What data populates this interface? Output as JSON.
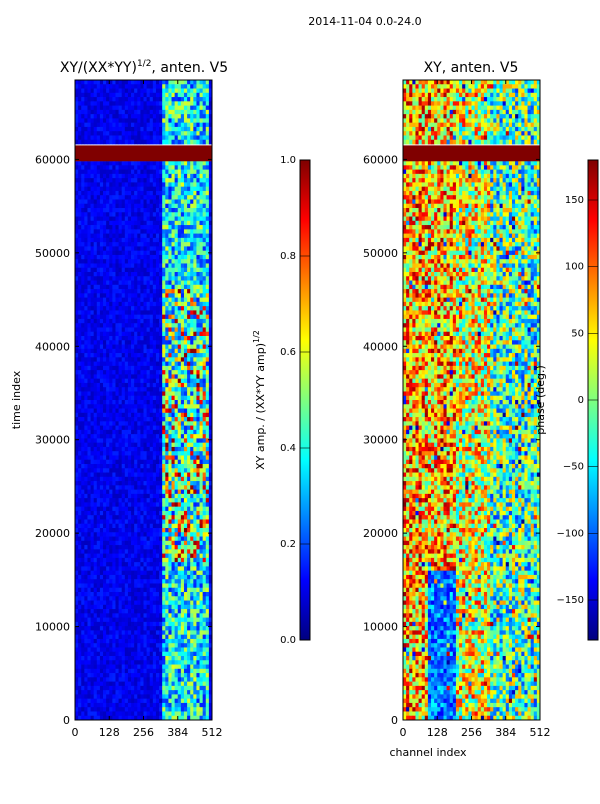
{
  "figure": {
    "suptitle": "2014-11-04 0.0-24.0",
    "shared_xlabel": "channel index"
  },
  "colors": {
    "jet": [
      "#00007f",
      "#0000ff",
      "#007fff",
      "#00ffff",
      "#7fff7f",
      "#ffff00",
      "#ff7f00",
      "#ff0000",
      "#7f0000"
    ],
    "flag_band": "#800000"
  },
  "chart_data": [
    {
      "type": "heatmap",
      "title_text": "XY/(XX*YY)",
      "title_sup": "1/2",
      "title_suffix": ", anten. V5",
      "xlabel": "",
      "ylabel": "time index",
      "xticks": [
        0,
        128,
        256,
        384,
        512
      ],
      "yticks": [
        0,
        10000,
        20000,
        30000,
        40000,
        50000,
        60000
      ],
      "xlim": [
        0,
        512
      ],
      "ylim": [
        0,
        68500
      ],
      "colorbar": {
        "label_text": "XY amp. / (XX*YY amp)",
        "label_sup": "1/2",
        "range": [
          0.0,
          1.0
        ],
        "ticks": [
          "0.0",
          "0.2",
          "0.4",
          "0.6",
          "0.8",
          "1.0"
        ]
      },
      "flagged_band": [
        59800,
        61500
      ],
      "active_channel_range": [
        325,
        500
      ]
    },
    {
      "type": "heatmap",
      "title_text": "XY, anten. V5",
      "xlabel": "channel index",
      "ylabel": "",
      "xticks": [
        0,
        128,
        256,
        384,
        512
      ],
      "yticks": [
        0,
        10000,
        20000,
        30000,
        40000,
        50000,
        60000
      ],
      "xlim": [
        0,
        512
      ],
      "ylim": [
        0,
        68500
      ],
      "colorbar": {
        "label_text": "phase (deg.)",
        "range": [
          -180,
          180
        ],
        "ticks": [
          "−150",
          "−100",
          "−50",
          "0",
          "50",
          "100",
          "150"
        ]
      },
      "flagged_band": [
        59800,
        61500
      ]
    }
  ]
}
